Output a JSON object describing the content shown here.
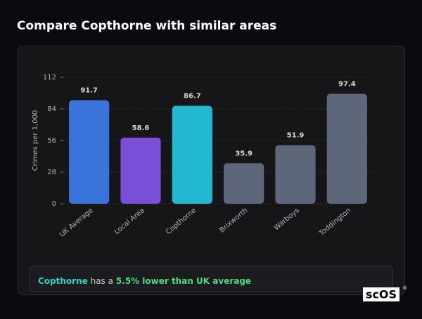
{
  "chart_data": {
    "type": "bar",
    "title": "Compare Copthorne with similar areas",
    "y_label": "Crimes per 1,000",
    "categories": [
      "UK Average",
      "Local Area",
      "Copthorne",
      "Brixworth",
      "Warboys",
      "Toddington"
    ],
    "values": [
      91.7,
      58.6,
      86.7,
      35.9,
      51.9,
      97.4
    ],
    "colors": [
      "#3a74db",
      "#7a4fd8",
      "#22b8cf",
      "#5d6779",
      "#5d6779",
      "#5d6779"
    ],
    "ylim": [
      0,
      112
    ],
    "yticks": [
      0,
      28,
      56,
      84,
      112
    ],
    "grid": true
  },
  "summary": {
    "area": "Copthorne",
    "text": "has a",
    "highlight": "5.5% lower than UK average"
  },
  "logo": "scOS",
  "logo_mark": "®"
}
